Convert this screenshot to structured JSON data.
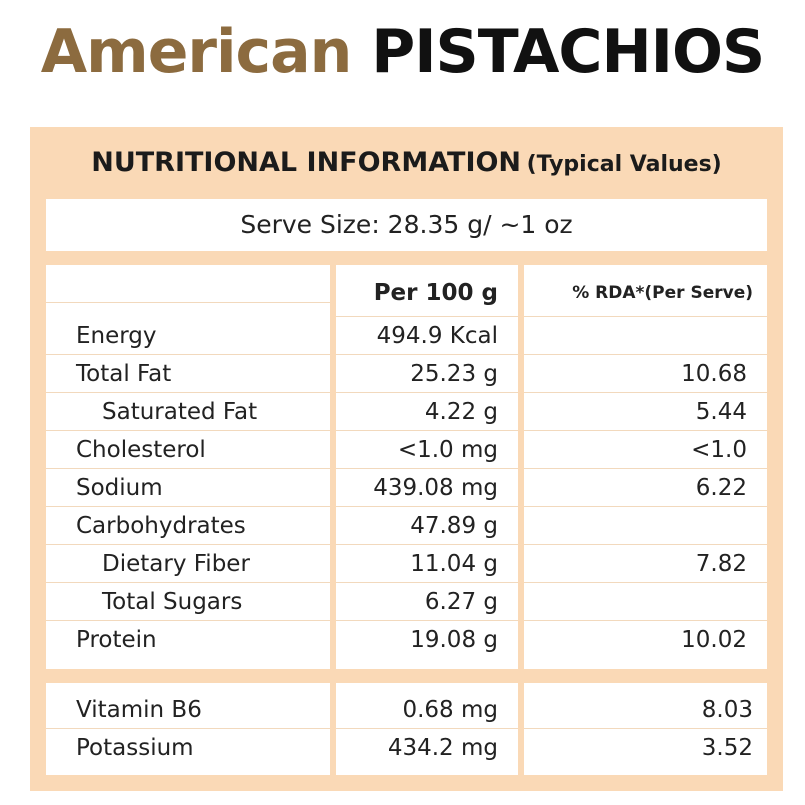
{
  "title": {
    "brand": "American",
    "product": "PISTACHIOS"
  },
  "label": {
    "heading": "NUTRITIONAL INFORMATION",
    "heading_sub": "(Typical Values)",
    "serve_size": "Serve Size: 28.35 g/ ~1 oz",
    "col_per100": "Per 100 g",
    "col_rda": "% RDA*(Per Serve)"
  },
  "nutrients": [
    {
      "name": "Energy",
      "per100": "494.9 Kcal",
      "rda": ""
    },
    {
      "name": "Total Fat",
      "per100": "25.23 g",
      "rda": "10.68"
    },
    {
      "name": "Saturated Fat",
      "per100": "4.22 g",
      "rda": "5.44"
    },
    {
      "name": "Cholesterol",
      "per100": "<1.0 mg",
      "rda": "<1.0"
    },
    {
      "name": "Sodium",
      "per100": "439.08 mg",
      "rda": "6.22"
    },
    {
      "name": "Carbohydrates",
      "per100": "47.89 g",
      "rda": ""
    },
    {
      "name": "Dietary Fiber",
      "per100": "11.04 g",
      "rda": "7.82"
    },
    {
      "name": "Total Sugars",
      "per100": "6.27 g",
      "rda": ""
    },
    {
      "name": "Protein",
      "per100": "19.08 g",
      "rda": "10.02"
    }
  ],
  "minerals": [
    {
      "name": "Vitamin B6",
      "per100": "0.68 mg",
      "rda": "8.03"
    },
    {
      "name": "Potassium",
      "per100": "434.2 mg",
      "rda": "3.52"
    }
  ],
  "colors": {
    "panel": "#fad9b6",
    "brand": "#8c6b3f"
  }
}
